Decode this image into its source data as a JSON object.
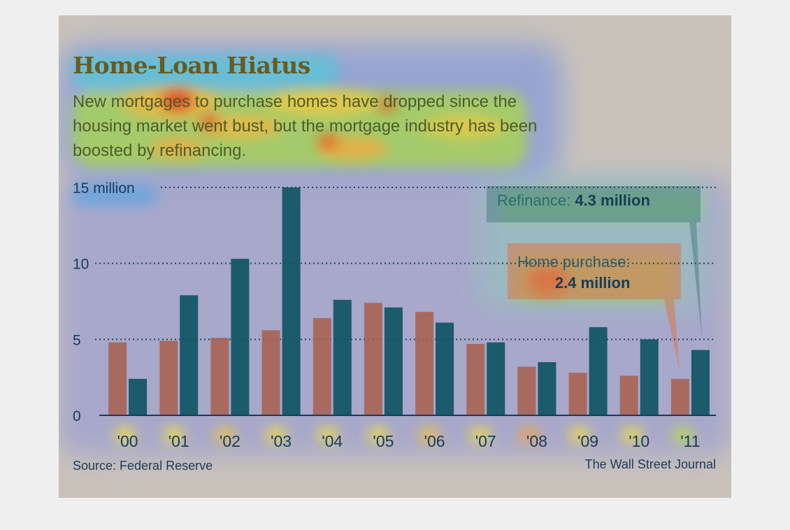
{
  "title": "Home-Loan Hiatus",
  "subtitle": "New mortgages to purchase homes have dropped since the housing market went bust, but the mortgage industry has been boosted by refinancing.",
  "source": "Source: Federal Reserve",
  "credit": "The Wall Street Journal",
  "annotations": {
    "refinance_label": "Refinance:",
    "refinance_value": "4.3 million",
    "purchase_label": "Home purchase:",
    "purchase_value": "2.4 million"
  },
  "colors": {
    "purchase": "#a85f4c",
    "refinance": "#0f5563",
    "axis_text": "#173c5a"
  },
  "chart_data": {
    "type": "bar",
    "title": "Home-Loan Hiatus",
    "categories": [
      "'00",
      "'01",
      "'02",
      "'03",
      "'04",
      "'05",
      "'06",
      "'07",
      "'08",
      "'09",
      "'10",
      "'11"
    ],
    "series": [
      {
        "name": "Home purchase",
        "values": [
          4.8,
          4.9,
          5.1,
          5.6,
          6.4,
          7.4,
          6.8,
          4.7,
          3.2,
          2.8,
          2.6,
          2.4
        ]
      },
      {
        "name": "Refinance",
        "values": [
          2.4,
          7.9,
          10.3,
          15.0,
          7.6,
          7.1,
          6.1,
          4.8,
          3.5,
          5.8,
          5.0,
          4.3
        ]
      }
    ],
    "ylim": [
      0,
      15
    ],
    "yticks": [
      0,
      5,
      10,
      15
    ],
    "ytick_labels": [
      "0",
      "5",
      "10",
      "15 million"
    ],
    "grid": "dotted horizontal",
    "legend": "none (direct annotations)"
  }
}
